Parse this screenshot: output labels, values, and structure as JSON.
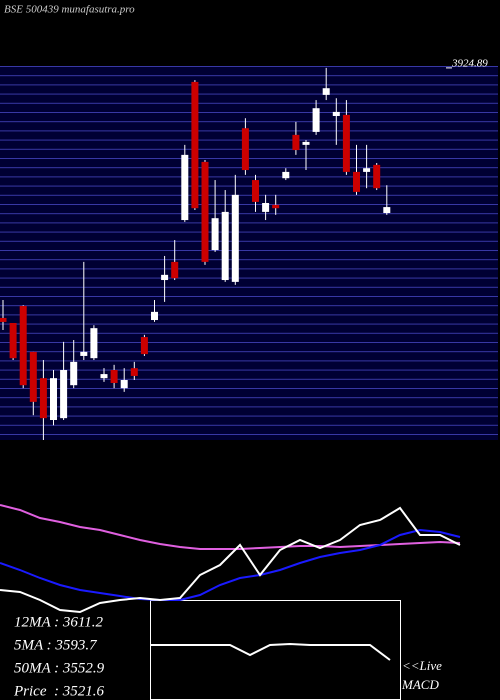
{
  "chart_data": [
    {
      "type": "candlestick",
      "title": "BSE 500439 munafasutra.pro",
      "ylim": [
        2920,
        3930
      ],
      "yticks": [
        3924.89
      ],
      "up_color": "#ffffff",
      "down_color": "#cc0000",
      "open": [
        3249.6,
        3236,
        3282,
        3158,
        3087,
        2974,
        2979,
        3068,
        3147,
        3141,
        3087,
        3109,
        3060,
        3114,
        3198,
        3244,
        3352,
        3401,
        3514,
        3887,
        3671,
        3433,
        3352,
        3347,
        3762,
        3622,
        3536,
        3555,
        3627,
        3744,
        3717,
        3752,
        3852,
        3795,
        3798,
        3644,
        3644,
        3663,
        3533
      ],
      "high": [
        3298.2,
        3236,
        3284,
        3158,
        3136,
        3109,
        3185,
        3190,
        3401,
        3230,
        3114,
        3123,
        3114,
        3131,
        3204,
        3298,
        3417,
        3460,
        3717,
        3892,
        3676,
        3622,
        3595,
        3636,
        3789,
        3636,
        3582,
        3582,
        3654,
        3779,
        3730,
        3838,
        3924.89,
        3843,
        3838,
        3717,
        3717,
        3668,
        3608
      ],
      "low": [
        3217.2,
        3136,
        3060,
        2987,
        2920,
        2960,
        2974,
        3060,
        3136,
        3136,
        3077,
        3060,
        3050,
        3082,
        3147,
        3239,
        3293,
        3352,
        3509,
        3541,
        3393,
        3428,
        3347,
        3339,
        3636,
        3536,
        3514,
        3528,
        3622,
        3690,
        3649,
        3744,
        3838,
        3717,
        3636,
        3582,
        3600,
        3595,
        3528
      ],
      "close": [
        3238.8,
        3141,
        3068,
        3023,
        2979,
        3087,
        3109,
        3131,
        3158,
        3222,
        3098,
        3074,
        3082,
        3093,
        3152,
        3266,
        3366,
        3357,
        3690,
        3546,
        3401,
        3519,
        3536,
        3582,
        3649,
        3563,
        3560,
        3546,
        3644,
        3703,
        3725,
        3816,
        3870,
        3806,
        3644,
        3590,
        3654,
        3600,
        3549
      ]
    },
    {
      "type": "line",
      "ylim": [
        0,
        120
      ],
      "x": [
        0,
        20,
        40,
        60,
        80,
        100,
        120,
        140,
        160,
        180,
        200,
        220,
        240,
        260,
        280,
        300,
        320,
        340,
        360,
        380,
        400,
        420,
        440,
        460
      ],
      "xlim": [
        0,
        500
      ],
      "series": [
        {
          "color": "#e060e0",
          "values": [
            115,
            110,
            102,
            98,
            93,
            90,
            85,
            80,
            76,
            73,
            71,
            71,
            71,
            72,
            73,
            74,
            74,
            73,
            74,
            75,
            76,
            77,
            78,
            77
          ]
        },
        {
          "color": "#1a1aff",
          "values": [
            57,
            50,
            42,
            35,
            30,
            27,
            24,
            21,
            20,
            20,
            25,
            35,
            42,
            45,
            50,
            57,
            63,
            67,
            70,
            75,
            85,
            90,
            88,
            83
          ]
        },
        {
          "color": "#ffffff",
          "values": [
            30,
            28,
            20,
            10,
            8,
            17,
            20,
            22,
            20,
            22,
            45,
            55,
            75,
            45,
            70,
            80,
            72,
            80,
            95,
            100,
            112,
            85,
            85,
            75
          ]
        }
      ],
      "annotations": [
        "12MA : 3611.2",
        "5MA : 3593.7",
        "50MA : 3552.9",
        "Price  : 3521.6"
      ]
    },
    {
      "type": "line",
      "ylim": [
        0,
        100
      ],
      "xlim": [
        150,
        400
      ],
      "x": [
        150,
        170,
        190,
        210,
        230,
        250,
        270,
        290,
        310,
        330,
        350,
        370,
        390
      ],
      "series": [
        {
          "color": "#ffffff",
          "values": [
            55,
            55,
            55,
            55,
            55,
            45,
            55,
            56,
            55,
            55,
            55,
            55,
            40
          ]
        }
      ],
      "annotations": [
        "<<Live",
        "MACD"
      ]
    }
  ]
}
